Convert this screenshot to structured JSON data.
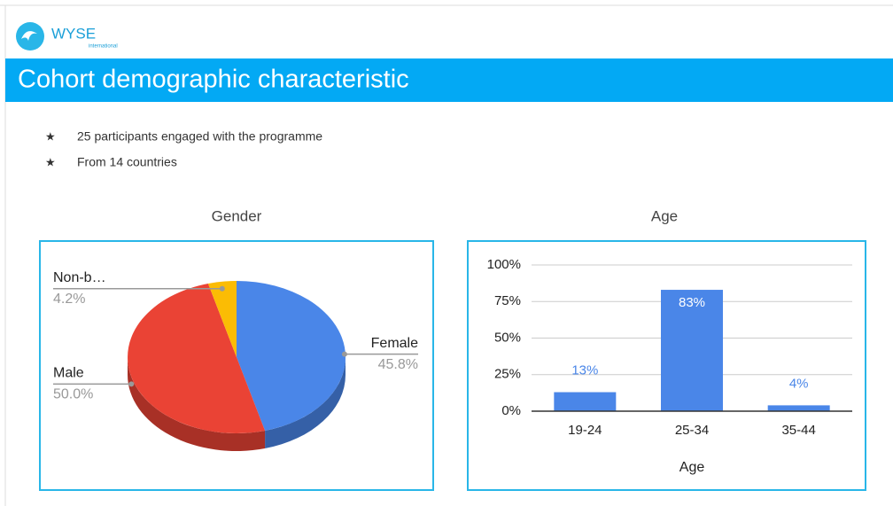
{
  "header": {
    "logo": "WYSE",
    "logo_sub": "international",
    "title": "Cohort demographic characteristic"
  },
  "bullets": [
    "25 participants engaged with the programme",
    "From 14 countries"
  ],
  "chart_data": [
    {
      "type": "pie",
      "title": "Gender",
      "categories": [
        "Female",
        "Male",
        "Non-b…"
      ],
      "values": [
        45.8,
        50.0,
        4.2
      ],
      "value_labels": [
        "45.8%",
        "50.0%",
        "4.2%"
      ],
      "colors": [
        "#4a86e8",
        "#ea4335",
        "#fbbc04"
      ]
    },
    {
      "type": "bar",
      "title": "Age",
      "x_label": "Age",
      "categories": [
        "19-24",
        "25-34",
        "35-44"
      ],
      "values": [
        13,
        83,
        4
      ],
      "value_labels": [
        "13%",
        "83%",
        "4%"
      ],
      "color": "#4a86e8",
      "ylim": [
        0,
        100
      ],
      "yticks": [
        {
          "value": 0,
          "label": "0%"
        },
        {
          "value": 25,
          "label": "25%"
        },
        {
          "value": 50,
          "label": "50%"
        },
        {
          "value": 75,
          "label": "75%"
        },
        {
          "value": 100,
          "label": "100%"
        }
      ],
      "grid": true
    }
  ]
}
